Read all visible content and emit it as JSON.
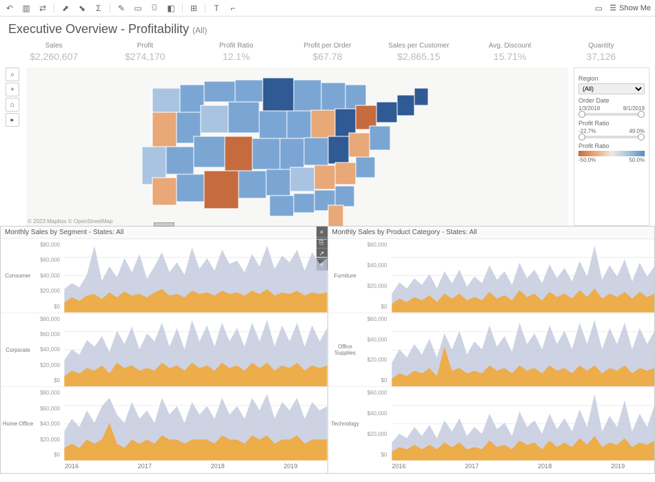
{
  "toolbar": {
    "showme": "Show Me"
  },
  "title": "Executive Overview - Profitability",
  "title_filter": "(All)",
  "kpis": [
    {
      "label": "Sales",
      "value": "$2,260,607"
    },
    {
      "label": "Profit",
      "value": "$274,170"
    },
    {
      "label": "Profit Ratio",
      "value": "12.1%"
    },
    {
      "label": "Profit per Order",
      "value": "$67.78"
    },
    {
      "label": "Sales per Customer",
      "value": "$2,865.15"
    },
    {
      "label": "Avg. Discount",
      "value": "15.71%"
    },
    {
      "label": "Quantity",
      "value": "37,126"
    }
  ],
  "map": {
    "attribution": "© 2023 Mapbox © OpenStreetMap",
    "colors": {
      "neg_strong": "#c66b3e",
      "neg_mid": "#e8a877",
      "neutral": "#d6d6d6",
      "pos_light": "#a8c4e0",
      "pos_mid": "#7ba6d4",
      "pos_strong": "#4a78b0",
      "pos_dark": "#2f5a94"
    }
  },
  "filters": {
    "region_label": "Region",
    "region_value": "(All)",
    "date_label": "Order Date",
    "date_min": "1/3/2018",
    "date_max": "8/1/2019",
    "ratio_label": "Profit Ratio",
    "ratio_min": "-22.7%",
    "ratio_max": "49.0%",
    "legend_label": "Profit Ratio",
    "legend_min": "-50.0%",
    "legend_max": "50.0%"
  },
  "panels": {
    "left": {
      "title": "Monthly Sales by Segment - States: All",
      "segments": [
        "Consumer",
        "Corporate",
        "Home Office"
      ],
      "ylabels": [
        "$80,000",
        "$60,000",
        "$40,000",
        "$20,000",
        "$0"
      ],
      "xaxis": [
        "2016",
        "2017",
        "2018",
        "2019"
      ]
    },
    "right": {
      "title": "Monthly Sales by Product Category - States: All",
      "segments": [
        "Furniture",
        "Office Supplies",
        "Technology"
      ],
      "ylabels": [
        "$60,000",
        "$40,000",
        "$20,000",
        "$0"
      ],
      "xaxis": [
        "2016",
        "2017",
        "2018",
        "2019"
      ]
    }
  },
  "chart_style": {
    "area_back_color": "#c0c8dc",
    "area_front_color": "#f0a838",
    "grid_color": "#eeeeee",
    "yaxis_color": "#999999"
  },
  "chart_data": {
    "left": [
      {
        "back": [
          28,
          35,
          30,
          45,
          80,
          38,
          55,
          42,
          65,
          48,
          70,
          40,
          55,
          72,
          48,
          60,
          45,
          78,
          52,
          65,
          50,
          75,
          58,
          62,
          48,
          70,
          55,
          80,
          52,
          68,
          60,
          75,
          50,
          72,
          58,
          65
        ],
        "front": [
          12,
          18,
          14,
          20,
          22,
          16,
          24,
          18,
          25,
          20,
          22,
          18,
          24,
          28,
          20,
          22,
          18,
          26,
          22,
          24,
          20,
          26,
          22,
          24,
          20,
          26,
          22,
          28,
          20,
          24,
          22,
          26,
          20,
          24,
          22,
          24
        ]
      },
      {
        "back": [
          20,
          28,
          24,
          35,
          30,
          38,
          26,
          42,
          32,
          45,
          28,
          40,
          34,
          48,
          30,
          44,
          28,
          50,
          34,
          46,
          30,
          48,
          34,
          44,
          30,
          48,
          34,
          50,
          30,
          46,
          34,
          48,
          30,
          46,
          34,
          44
        ],
        "front": [
          8,
          12,
          10,
          14,
          12,
          16,
          10,
          18,
          14,
          16,
          12,
          14,
          12,
          18,
          14,
          16,
          12,
          18,
          14,
          16,
          12,
          18,
          14,
          16,
          12,
          18,
          14,
          18,
          12,
          16,
          14,
          18,
          12,
          16,
          14,
          16
        ]
      },
      {
        "back": [
          14,
          20,
          16,
          24,
          18,
          26,
          30,
          22,
          18,
          28,
          20,
          24,
          18,
          30,
          22,
          26,
          18,
          28,
          22,
          26,
          20,
          30,
          22,
          26,
          20,
          30,
          24,
          32,
          20,
          28,
          24,
          30,
          20,
          28,
          24,
          26
        ],
        "front": [
          6,
          8,
          6,
          10,
          8,
          10,
          18,
          8,
          6,
          10,
          8,
          10,
          8,
          12,
          10,
          10,
          8,
          10,
          10,
          10,
          8,
          12,
          10,
          10,
          8,
          12,
          10,
          12,
          8,
          10,
          10,
          12,
          8,
          10,
          10,
          10
        ]
      }
    ],
    "right": [
      {
        "back": [
          22,
          35,
          28,
          40,
          32,
          45,
          28,
          48,
          34,
          50,
          30,
          42,
          34,
          55,
          38,
          48,
          32,
          58,
          40,
          50,
          34,
          56,
          40,
          52,
          36,
          60,
          42,
          78,
          38,
          55,
          42,
          62,
          36,
          58,
          42,
          54
        ],
        "front": [
          10,
          16,
          12,
          18,
          14,
          20,
          12,
          22,
          16,
          22,
          14,
          18,
          14,
          24,
          16,
          20,
          14,
          26,
          18,
          22,
          14,
          24,
          18,
          22,
          16,
          26,
          18,
          28,
          16,
          22,
          18,
          24,
          16,
          24,
          18,
          22
        ]
      },
      {
        "back": [
          18,
          28,
          22,
          32,
          24,
          36,
          22,
          40,
          28,
          42,
          24,
          34,
          28,
          46,
          30,
          38,
          26,
          48,
          32,
          40,
          28,
          46,
          32,
          42,
          28,
          48,
          32,
          50,
          28,
          44,
          32,
          48,
          28,
          44,
          32,
          42
        ],
        "front": [
          6,
          10,
          8,
          12,
          10,
          14,
          8,
          30,
          12,
          14,
          10,
          12,
          10,
          16,
          12,
          14,
          10,
          16,
          12,
          14,
          10,
          16,
          12,
          14,
          10,
          16,
          12,
          16,
          10,
          14,
          12,
          16,
          10,
          14,
          12,
          14
        ]
      },
      {
        "back": [
          16,
          24,
          20,
          30,
          22,
          32,
          20,
          36,
          26,
          38,
          22,
          30,
          24,
          42,
          28,
          34,
          22,
          44,
          30,
          36,
          24,
          42,
          28,
          38,
          26,
          46,
          30,
          60,
          26,
          40,
          30,
          54,
          26,
          42,
          30,
          50
        ],
        "front": [
          8,
          12,
          10,
          14,
          10,
          14,
          10,
          16,
          12,
          16,
          10,
          12,
          10,
          18,
          12,
          14,
          10,
          18,
          14,
          16,
          10,
          18,
          12,
          16,
          12,
          20,
          14,
          22,
          12,
          16,
          14,
          20,
          12,
          16,
          14,
          18
        ]
      }
    ]
  }
}
